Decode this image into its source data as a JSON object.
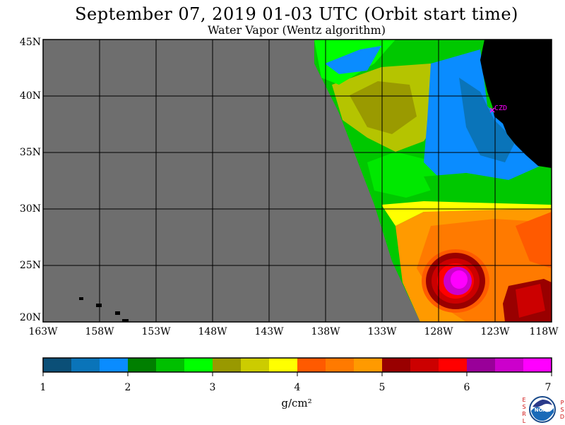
{
  "title": "September 07, 2019  01-03 UTC  (Orbit start time)",
  "subtitle": "Water Vapor (Wentz algorithm)",
  "latitude_labels": [
    "45N",
    "40N",
    "35N",
    "30N",
    "25N",
    "20N"
  ],
  "longitude_labels": [
    "163W",
    "158W",
    "153W",
    "148W",
    "143W",
    "138W",
    "133W",
    "128W",
    "123W",
    "118W"
  ],
  "station_label": "CZD",
  "colorbar": {
    "ticks": [
      "1",
      "2",
      "3",
      "4",
      "5",
      "6",
      "7"
    ],
    "units": "g/cm²",
    "colors": [
      "#0b4f77",
      "#0a74b9",
      "#0a8cff",
      "#007f00",
      "#00bf00",
      "#00ff00",
      "#999900",
      "#cccc00",
      "#ffff00",
      "#ff5a00",
      "#ff7a00",
      "#ff9a00",
      "#990000",
      "#cc0000",
      "#ff0000",
      "#990099",
      "#cc00cc",
      "#ff00ff"
    ]
  },
  "logo": {
    "left_letters": "ESRL",
    "right_letters": "PSD",
    "center_text": "NOAA"
  },
  "colors": {
    "no_data": "#6e6e6e",
    "land": "#000000",
    "grid": "#000000",
    "station": "#ff00ff"
  }
}
